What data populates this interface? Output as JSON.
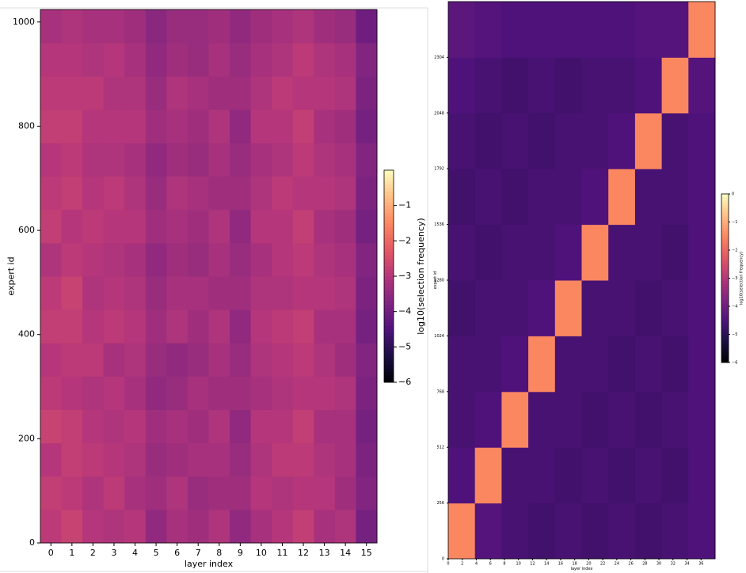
{
  "chart_data": [
    {
      "type": "heatmap",
      "x_label": "layer index",
      "y_label": "expert id",
      "colorbar_label": "log10(selection frequency)",
      "colormap": "magma",
      "categories": [
        0,
        1,
        2,
        3,
        4,
        5,
        6,
        7,
        8,
        9,
        10,
        11,
        12,
        13,
        14,
        15
      ],
      "ybins": [
        0,
        64,
        128,
        192,
        256,
        320,
        384,
        448,
        512,
        576,
        640,
        704,
        768,
        832,
        896,
        960,
        1024
      ],
      "ylim": [
        0,
        1024
      ],
      "yticks": [
        0,
        200,
        400,
        600,
        800,
        1000
      ],
      "clim": [
        -6,
        0
      ],
      "cticks": [
        {
          "value": -1,
          "label": "−1"
        },
        {
          "value": -2,
          "label": "−2"
        },
        {
          "value": -3,
          "label": "−3"
        },
        {
          "value": -4,
          "label": "−4"
        },
        {
          "value": -5,
          "label": "−5"
        },
        {
          "value": -6,
          "label": "−6"
        }
      ],
      "values": [
        [
          -2.9,
          -2.7,
          -3.0,
          -3.1,
          -3.0,
          -3.5,
          -3.2,
          -3.3,
          -3.1,
          -3.5,
          -3.2,
          -3.0,
          -2.8,
          -3.2,
          -3.1,
          -3.9
        ],
        [
          -2.8,
          -2.9,
          -3.1,
          -2.9,
          -3.2,
          -3.3,
          -3.1,
          -3.4,
          -3.3,
          -3.3,
          -3.0,
          -3.1,
          -3.0,
          -3.0,
          -3.3,
          -3.7
        ],
        [
          -3.0,
          -2.8,
          -2.9,
          -3.0,
          -3.1,
          -3.4,
          -3.3,
          -3.2,
          -3.2,
          -3.4,
          -3.1,
          -2.9,
          -2.9,
          -3.1,
          -3.2,
          -3.8
        ],
        [
          -2.7,
          -2.8,
          -3.0,
          -3.1,
          -3.0,
          -3.3,
          -3.2,
          -3.3,
          -3.1,
          -3.5,
          -3.0,
          -3.0,
          -2.8,
          -3.2,
          -3.2,
          -3.9
        ],
        [
          -2.9,
          -3.0,
          -3.1,
          -3.0,
          -3.2,
          -3.5,
          -3.4,
          -3.2,
          -3.3,
          -3.3,
          -3.2,
          -3.1,
          -3.0,
          -3.0,
          -3.1,
          -3.8
        ],
        [
          -3.0,
          -2.9,
          -2.9,
          -3.2,
          -3.1,
          -3.4,
          -3.5,
          -3.4,
          -3.2,
          -3.4,
          -3.1,
          -3.0,
          -2.9,
          -3.1,
          -3.3,
          -3.7
        ],
        [
          -2.8,
          -2.8,
          -3.0,
          -2.9,
          -3.0,
          -3.3,
          -3.1,
          -3.3,
          -3.1,
          -3.5,
          -3.0,
          -2.9,
          -2.8,
          -3.2,
          -3.2,
          -3.9
        ],
        [
          -2.9,
          -2.7,
          -3.1,
          -3.0,
          -3.1,
          -3.4,
          -3.2,
          -3.2,
          -3.3,
          -3.3,
          -3.1,
          -3.1,
          -3.0,
          -3.0,
          -3.1,
          -3.8
        ],
        [
          -3.1,
          -2.9,
          -3.0,
          -3.1,
          -3.2,
          -3.5,
          -3.3,
          -3.4,
          -3.2,
          -3.4,
          -3.2,
          -3.0,
          -2.9,
          -3.1,
          -3.2,
          -3.7
        ],
        [
          -2.8,
          -3.0,
          -2.9,
          -3.0,
          -3.0,
          -3.3,
          -3.2,
          -3.3,
          -3.1,
          -3.5,
          -3.0,
          -3.0,
          -2.8,
          -3.2,
          -3.3,
          -3.9
        ],
        [
          -2.9,
          -2.8,
          -3.0,
          -2.9,
          -3.1,
          -3.4,
          -3.1,
          -3.2,
          -3.3,
          -3.3,
          -3.1,
          -2.9,
          -3.0,
          -3.0,
          -3.1,
          -3.8
        ],
        [
          -3.0,
          -2.9,
          -3.1,
          -3.1,
          -3.2,
          -3.5,
          -3.3,
          -3.4,
          -3.2,
          -3.4,
          -3.2,
          -3.1,
          -2.9,
          -3.1,
          -3.2,
          -3.7
        ],
        [
          -2.8,
          -2.8,
          -3.0,
          -3.0,
          -3.0,
          -3.3,
          -3.2,
          -3.3,
          -3.1,
          -3.5,
          -3.0,
          -3.0,
          -2.8,
          -3.2,
          -3.3,
          -3.9
        ],
        [
          -2.9,
          -2.9,
          -2.9,
          -3.1,
          -3.1,
          -3.4,
          -3.1,
          -3.2,
          -3.3,
          -3.3,
          -3.1,
          -2.9,
          -3.0,
          -3.0,
          -3.1,
          -3.8
        ],
        [
          -3.0,
          -3.0,
          -3.1,
          -3.0,
          -3.2,
          -3.5,
          -3.3,
          -3.4,
          -3.2,
          -3.4,
          -3.2,
          -3.1,
          -2.9,
          -3.1,
          -3.2,
          -3.7
        ],
        [
          -3.2,
          -3.1,
          -3.2,
          -3.2,
          -3.3,
          -3.6,
          -3.4,
          -3.4,
          -3.3,
          -3.5,
          -3.3,
          -3.2,
          -3.1,
          -3.3,
          -3.4,
          -4.0
        ]
      ]
    },
    {
      "type": "heatmap",
      "x_label": "layer index",
      "y_label": "expert id",
      "colorbar_label": "log10(selection frequency)",
      "colormap": "magma",
      "xbins": [
        0,
        3.8,
        7.6,
        11.4,
        15.2,
        19,
        22.8,
        26.6,
        30.4,
        34.2,
        38
      ],
      "xlim": [
        0,
        38
      ],
      "xticks": [
        0,
        2,
        4,
        6,
        8,
        10,
        12,
        14,
        16,
        18,
        20,
        22,
        24,
        26,
        28,
        30,
        32,
        34,
        36
      ],
      "ybins": [
        0,
        256,
        512,
        768,
        1024,
        1280,
        1536,
        1792,
        2048,
        2304,
        2560
      ],
      "ylim": [
        0,
        2560
      ],
      "yticks": [
        0,
        256,
        512,
        768,
        1024,
        1280,
        1536,
        1792,
        2048,
        2304
      ],
      "clim": [
        -6,
        0
      ],
      "cticks": [
        0,
        {
          "value": -1,
          "label": "−1"
        },
        {
          "value": -2,
          "label": "−2"
        },
        {
          "value": -3,
          "label": "−3"
        },
        {
          "value": -4,
          "label": "−4"
        },
        {
          "value": -5,
          "label": "−5"
        },
        {
          "value": -6,
          "label": "−6"
        }
      ],
      "values": [
        [
          -1.5,
          -4.4,
          -4.6,
          -4.7,
          -4.6,
          -4.7,
          -4.6,
          -4.7,
          -4.6,
          -4.5
        ],
        [
          -4.5,
          -1.5,
          -4.6,
          -4.6,
          -4.7,
          -4.6,
          -4.7,
          -4.6,
          -4.7,
          -4.5
        ],
        [
          -4.6,
          -4.5,
          -1.5,
          -4.6,
          -4.6,
          -4.7,
          -4.6,
          -4.7,
          -4.6,
          -4.5
        ],
        [
          -4.6,
          -4.6,
          -4.5,
          -1.5,
          -4.6,
          -4.6,
          -4.7,
          -4.6,
          -4.7,
          -4.5
        ],
        [
          -4.7,
          -4.6,
          -4.6,
          -4.5,
          -1.5,
          -4.6,
          -4.6,
          -4.7,
          -4.6,
          -4.5
        ],
        [
          -4.6,
          -4.7,
          -4.6,
          -4.6,
          -4.5,
          -1.5,
          -4.6,
          -4.6,
          -4.7,
          -4.5
        ],
        [
          -4.7,
          -4.6,
          -4.7,
          -4.6,
          -4.6,
          -4.5,
          -1.5,
          -4.6,
          -4.6,
          -4.5
        ],
        [
          -4.6,
          -4.7,
          -4.6,
          -4.7,
          -4.6,
          -4.6,
          -4.5,
          -1.5,
          -4.6,
          -4.5
        ],
        [
          -4.5,
          -4.6,
          -4.7,
          -4.6,
          -4.7,
          -4.6,
          -4.6,
          -4.5,
          -1.5,
          -4.4
        ],
        [
          -4.3,
          -4.4,
          -4.5,
          -4.5,
          -4.5,
          -4.5,
          -4.5,
          -4.4,
          -4.4,
          -1.5
        ]
      ]
    }
  ]
}
